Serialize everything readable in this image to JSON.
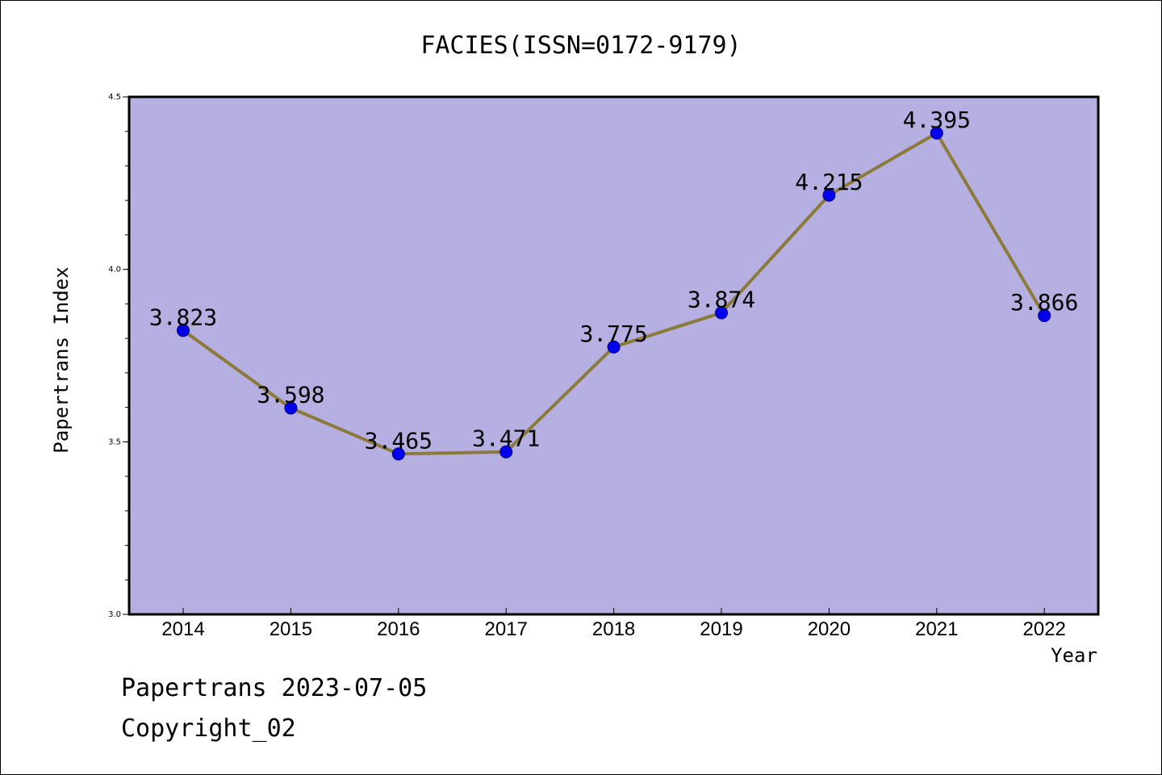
{
  "colors": {
    "plot_background": "#b5afe2",
    "line": "#8b7a3a",
    "marker": "#0000ee",
    "marker_edge": "#000080",
    "axis": "#000000"
  },
  "chart_data": {
    "type": "line",
    "title": "FACIES(ISSN=0172-9179)",
    "xlabel": "Year",
    "ylabel": "Papertrans Index",
    "categories": [
      "2014",
      "2015",
      "2016",
      "2017",
      "2018",
      "2019",
      "2020",
      "2021",
      "2022"
    ],
    "series": [
      {
        "values": [
          3.823,
          3.598,
          3.465,
          3.471,
          3.775,
          3.874,
          4.215,
          4.395,
          3.866
        ]
      }
    ],
    "data_labels": [
      "3.823",
      "3.598",
      "3.465",
      "3.471",
      "3.775",
      "3.874",
      "4.215",
      "4.395",
      "3.866"
    ],
    "ylim": [
      3.0,
      4.5
    ],
    "yticks": [
      3.0,
      3.5,
      4.0,
      4.5
    ],
    "ytick_labels": [
      "3.0",
      "3.5",
      "4.0",
      "4.5"
    ],
    "ytick_minor_step": 0.1,
    "grid": false,
    "legend": "none"
  },
  "footer": {
    "date_line": "Papertrans 2023-07-05",
    "copyright": "Copyright_02"
  }
}
